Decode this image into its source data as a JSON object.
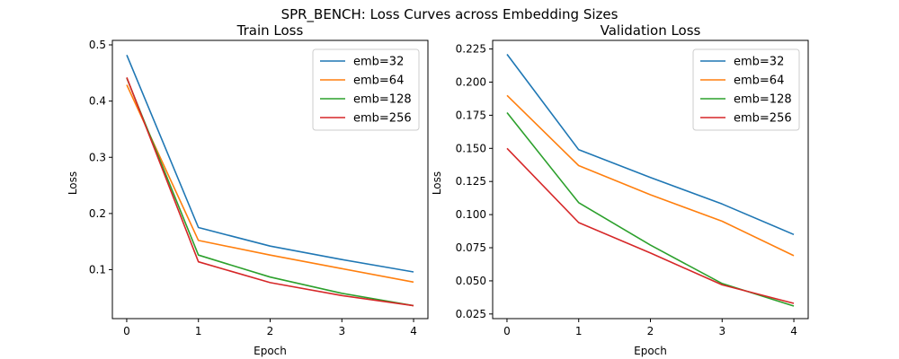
{
  "figure": {
    "suptitle": "SPR_BENCH: Loss Curves across Embedding Sizes"
  },
  "chart_data": [
    {
      "type": "line",
      "title": "Train Loss",
      "xlabel": "Epoch",
      "ylabel": "Loss",
      "x": [
        0,
        1,
        2,
        3,
        4
      ],
      "xticks": [
        0,
        1,
        2,
        3,
        4
      ],
      "xlim": [
        -0.2,
        4.2
      ],
      "yticks": [
        0.1,
        0.2,
        0.3,
        0.4,
        0.5
      ],
      "ytick_labels": [
        "0.1",
        "0.2",
        "0.3",
        "0.4",
        "0.5"
      ],
      "ylim": [
        0.013,
        0.508
      ],
      "legend": "top-right",
      "series": [
        {
          "name": "emb=32",
          "color": "#1f77b4",
          "values": [
            0.482,
            0.175,
            0.142,
            0.118,
            0.096
          ]
        },
        {
          "name": "emb=64",
          "color": "#ff7f0e",
          "values": [
            0.429,
            0.152,
            0.126,
            0.102,
            0.078
          ]
        },
        {
          "name": "emb=128",
          "color": "#2ca02c",
          "values": [
            0.441,
            0.126,
            0.087,
            0.058,
            0.036
          ]
        },
        {
          "name": "emb=256",
          "color": "#d62728",
          "values": [
            0.442,
            0.114,
            0.077,
            0.054,
            0.036
          ]
        }
      ]
    },
    {
      "type": "line",
      "title": "Validation Loss",
      "xlabel": "Epoch",
      "ylabel": "Loss",
      "x": [
        0,
        1,
        2,
        3,
        4
      ],
      "xticks": [
        0,
        1,
        2,
        3,
        4
      ],
      "xlim": [
        -0.2,
        4.2
      ],
      "yticks": [
        0.025,
        0.05,
        0.075,
        0.1,
        0.125,
        0.15,
        0.175,
        0.2,
        0.225
      ],
      "ytick_labels": [
        "0.025",
        "0.050",
        "0.075",
        "0.100",
        "0.125",
        "0.150",
        "0.175",
        "0.200",
        "0.225"
      ],
      "ylim": [
        0.0215,
        0.2315
      ],
      "legend": "top-right",
      "series": [
        {
          "name": "emb=32",
          "color": "#1f77b4",
          "values": [
            0.221,
            0.149,
            0.128,
            0.108,
            0.085
          ]
        },
        {
          "name": "emb=64",
          "color": "#ff7f0e",
          "values": [
            0.19,
            0.137,
            0.115,
            0.095,
            0.069
          ]
        },
        {
          "name": "emb=128",
          "color": "#2ca02c",
          "values": [
            0.177,
            0.109,
            0.077,
            0.048,
            0.031
          ]
        },
        {
          "name": "emb=256",
          "color": "#d62728",
          "values": [
            0.15,
            0.094,
            0.071,
            0.047,
            0.033
          ]
        }
      ]
    }
  ]
}
